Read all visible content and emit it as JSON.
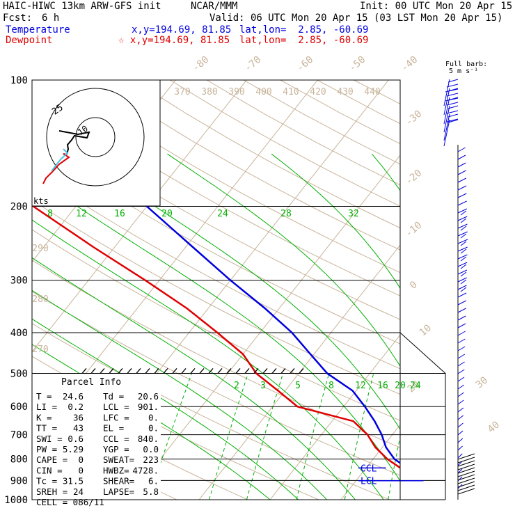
{
  "header": {
    "model": "HAIC-HIWC 13km ARW-GFS init",
    "org": "NCAR/MMM",
    "init": "Init: 00 UTC Mon 20 Apr 15",
    "fcst_label": "Fcst:",
    "fcst_value": "6 h",
    "valid": "Valid: 06 UTC Mon 20 Apr 15 (03 LST Mon 20 Apr 15)",
    "temp_label": "Temperature",
    "temp_pos": "x,y=194.69, 81.85",
    "temp_latlon": "lat,lon=  2.85, -60.69",
    "dew_label": "Dewpoint",
    "dew_pos": "☆ x,y=194.69, 81.85",
    "dew_latlon": "lat,lon=  2.85, -60.69",
    "barb_title": "Full barb:",
    "barb_unit": "5 m s⁻¹"
  },
  "colors": {
    "temperature": "#0000e0",
    "dewpoint": "#e00000",
    "isotherm": "#c8b49a",
    "mixing_ratio": "#00b000",
    "isobar": "#000000"
  },
  "chart_data": {
    "type": "line",
    "pressure_levels": [
      100,
      200,
      300,
      400,
      500,
      600,
      700,
      800,
      900,
      1000
    ],
    "isotherm_labels": [
      "-80",
      "-70",
      "-60",
      "-50",
      "-40",
      "-30",
      "-20",
      "-10",
      "0",
      "10",
      "20",
      "30",
      "40"
    ],
    "theta_labels": [
      "370",
      "380",
      "390",
      "400",
      "410",
      "420",
      "430",
      "440"
    ],
    "theta_side_labels": [
      "290",
      "280",
      "270"
    ],
    "mixing_ratio_upper_labels": [
      "8",
      "12",
      "16",
      "20",
      "24",
      "28",
      "32"
    ],
    "mixing_ratio_lower_labels": [
      "2",
      "3",
      "5",
      "8",
      "12",
      "16",
      "20",
      "24"
    ],
    "series": [
      {
        "name": "Temperature",
        "pressure": [
          1000,
          950,
          925,
          900,
          850,
          800,
          750,
          700,
          650,
          600,
          550,
          500,
          450,
          400,
          350,
          300,
          250,
          200,
          175,
          150,
          125,
          110,
          100
        ],
        "temperature": [
          24.6,
          21.5,
          20.5,
          19.5,
          16.5,
          13.0,
          10.5,
          8.5,
          6.0,
          3.0,
          -0.5,
          -6.0,
          -10.5,
          -15.5,
          -22.0,
          -30.0,
          -39.0,
          -50.0,
          -55.5,
          -62.0,
          -70.0,
          -74.5,
          -77.5
        ]
      },
      {
        "name": "Dewpoint",
        "pressure": [
          1000,
          950,
          900,
          850,
          800,
          750,
          700,
          650,
          600,
          550,
          500,
          450,
          400,
          350,
          300,
          250,
          200,
          175,
          150,
          125,
          110,
          100
        ],
        "dewpoint": [
          20.6,
          19.5,
          17.5,
          15.5,
          12.0,
          9.0,
          6.5,
          3.0,
          -6.5,
          -11.0,
          -16.0,
          -20.0,
          -26.0,
          -33.0,
          -42.0,
          -53.0,
          -66.0,
          -71.0,
          -77.5,
          -84.5,
          -89.0,
          -91.5
        ]
      }
    ],
    "annotations": [
      "CCL",
      "LCL"
    ],
    "hodograph_label": "kts",
    "hodograph_ring_labels": [
      "25",
      "10"
    ]
  },
  "parcel_info": {
    "title": "Parcel Info",
    "rows": [
      [
        "T  =",
        "24.6",
        "Td =",
        "20.6"
      ],
      [
        "LI =",
        "0.2",
        "LCL =",
        "901."
      ],
      [
        "K  =",
        "36",
        "LFC =",
        "0."
      ],
      [
        "TT =",
        "43",
        "EL  =",
        "0."
      ],
      [
        "SWI =",
        "0.6",
        "CCL =",
        "840."
      ],
      [
        "PW =",
        "5.29",
        "YGP =",
        "0.0"
      ],
      [
        "CAPE =",
        "0",
        "SWEAT=",
        "223"
      ],
      [
        "CIN =",
        "0",
        "HWBZ=",
        "4728."
      ],
      [
        "Tc =",
        "31.5",
        "SHEAR=",
        "6."
      ],
      [
        "SREH =",
        "24",
        "LAPSE=",
        "5.8"
      ],
      [
        "CELL = 086/11",
        "",
        "",
        ""
      ]
    ]
  }
}
